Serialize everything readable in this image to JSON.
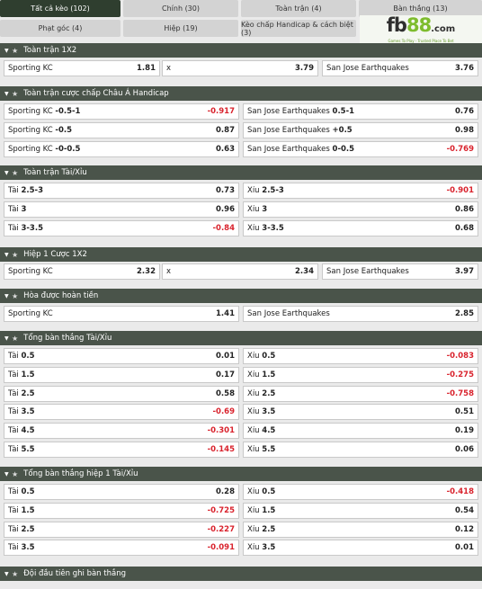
{
  "tabs": [
    {
      "label": "Tất cả kèo (102)",
      "active": true
    },
    {
      "label": "Chính (30)"
    },
    {
      "label": "Toàn trận (4)"
    },
    {
      "label": "Bàn thắng (13)"
    },
    {
      "label": "Phạt góc (4)"
    },
    {
      "label": "Hiệp (19)"
    },
    {
      "label": "Kèo chấp Handicap & cách biệt (3)"
    }
  ],
  "brand": {
    "fb": "fb",
    "n88": "88",
    "com": ".com",
    "tagline": "Games To Play · Trusted Place To Bet"
  },
  "sections": [
    {
      "title": "Toàn trận 1X2",
      "rows": [
        [
          {
            "name": "Sporting KC",
            "odd": "1.81"
          },
          {
            "name": "x",
            "odd": "3.79"
          },
          {
            "name": "San Jose Earthquakes",
            "odd": "3.76"
          }
        ]
      ]
    },
    {
      "title": "Toàn trận cược chấp Châu Á Handicap",
      "rows": [
        [
          {
            "name": "Sporting KC",
            "line": "-0.5-1",
            "odd": "-0.917"
          },
          {
            "name": "San Jose Earthquakes",
            "line": "0.5-1",
            "odd": "0.76"
          }
        ],
        [
          {
            "name": "Sporting KC",
            "line": "-0.5",
            "odd": "0.87"
          },
          {
            "name": "San Jose Earthquakes",
            "line": "+0.5",
            "odd": "0.98"
          }
        ],
        [
          {
            "name": "Sporting KC",
            "line": "-0-0.5",
            "odd": "0.63"
          },
          {
            "name": "San Jose Earthquakes",
            "line": "0-0.5",
            "odd": "-0.769"
          }
        ]
      ]
    },
    {
      "title": "Toàn trận Tài/Xỉu",
      "rows": [
        [
          {
            "name": "Tài",
            "line": "2.5-3",
            "odd": "0.73"
          },
          {
            "name": "Xỉu",
            "line": "2.5-3",
            "odd": "-0.901"
          }
        ],
        [
          {
            "name": "Tài",
            "line": "3",
            "odd": "0.96"
          },
          {
            "name": "Xỉu",
            "line": "3",
            "odd": "0.86"
          }
        ],
        [
          {
            "name": "Tài",
            "line": "3-3.5",
            "odd": "-0.84"
          },
          {
            "name": "Xỉu",
            "line": "3-3.5",
            "odd": "0.68"
          }
        ]
      ]
    },
    {
      "title": "Hiệp 1 Cược 1X2",
      "rows": [
        [
          {
            "name": "Sporting KC",
            "odd": "2.32"
          },
          {
            "name": "x",
            "odd": "2.34"
          },
          {
            "name": "San Jose Earthquakes",
            "odd": "3.97"
          }
        ]
      ]
    },
    {
      "title": "Hòa được hoàn tiền",
      "rows": [
        [
          {
            "name": "Sporting KC",
            "odd": "1.41"
          },
          {
            "name": "San Jose Earthquakes",
            "odd": "2.85"
          }
        ]
      ]
    },
    {
      "title": "Tổng bàn thắng Tài/Xỉu",
      "rows": [
        [
          {
            "name": "Tài",
            "line": "0.5",
            "odd": "0.01"
          },
          {
            "name": "Xỉu",
            "line": "0.5",
            "odd": "-0.083"
          }
        ],
        [
          {
            "name": "Tài",
            "line": "1.5",
            "odd": "0.17"
          },
          {
            "name": "Xỉu",
            "line": "1.5",
            "odd": "-0.275"
          }
        ],
        [
          {
            "name": "Tài",
            "line": "2.5",
            "odd": "0.58"
          },
          {
            "name": "Xỉu",
            "line": "2.5",
            "odd": "-0.758"
          }
        ],
        [
          {
            "name": "Tài",
            "line": "3.5",
            "odd": "-0.69"
          },
          {
            "name": "Xỉu",
            "line": "3.5",
            "odd": "0.51"
          }
        ],
        [
          {
            "name": "Tài",
            "line": "4.5",
            "odd": "-0.301"
          },
          {
            "name": "Xỉu",
            "line": "4.5",
            "odd": "0.19"
          }
        ],
        [
          {
            "name": "Tài",
            "line": "5.5",
            "odd": "-0.145"
          },
          {
            "name": "Xỉu",
            "line": "5.5",
            "odd": "0.06"
          }
        ]
      ]
    },
    {
      "title": "Tổng bàn thắng hiệp 1 Tài/Xỉu",
      "rows": [
        [
          {
            "name": "Tài",
            "line": "0.5",
            "odd": "0.28"
          },
          {
            "name": "Xỉu",
            "line": "0.5",
            "odd": "-0.418"
          }
        ],
        [
          {
            "name": "Tài",
            "line": "1.5",
            "odd": "-0.725"
          },
          {
            "name": "Xỉu",
            "line": "1.5",
            "odd": "0.54"
          }
        ],
        [
          {
            "name": "Tài",
            "line": "2.5",
            "odd": "-0.227"
          },
          {
            "name": "Xỉu",
            "line": "2.5",
            "odd": "0.12"
          }
        ],
        [
          {
            "name": "Tài",
            "line": "3.5",
            "odd": "-0.091"
          },
          {
            "name": "Xỉu",
            "line": "3.5",
            "odd": "0.01"
          }
        ]
      ]
    },
    {
      "title": "Đội đầu tiên ghi bàn thắng",
      "rows": []
    }
  ],
  "icons": {
    "caret": "caret-down-icon",
    "star": "star-icon"
  },
  "colors": {
    "header_bg": "#4a544a",
    "active_tab": "#2f3e2f",
    "negative": "#d9232d",
    "brand_green": "#7ebc2e"
  }
}
